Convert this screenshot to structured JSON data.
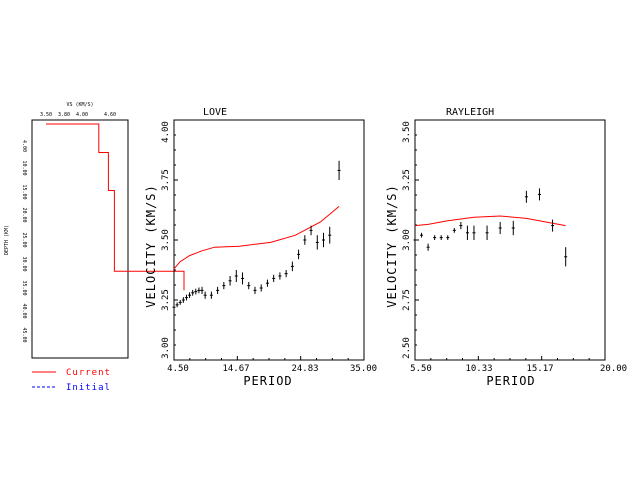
{
  "legend": {
    "current_label": "Current",
    "initial_label": "Initial",
    "current_color": "#ff0000",
    "initial_color": "#0000ff"
  },
  "chart_data": [
    {
      "id": "vs",
      "type": "line",
      "xlabel": "VS (KM/S)",
      "ylabel": "DEPTH (KM)",
      "xticks": [
        "3.50",
        "3.80",
        "4.00",
        "4.60"
      ],
      "yticks": [
        "4.00",
        "10.00",
        "15.00",
        "20.00",
        "25.00",
        "30.00",
        "35.00",
        "40.00",
        "45.00"
      ],
      "series": [
        {
          "name": "Current",
          "color": "#ff0000",
          "points": [
            [
              3.25,
              0
            ],
            [
              3.69,
              0
            ],
            [
              3.69,
              6
            ],
            [
              3.77,
              6
            ],
            [
              3.77,
              14
            ],
            [
              3.82,
              14
            ],
            [
              3.82,
              31
            ],
            [
              4.4,
              31
            ],
            [
              4.4,
              35
            ]
          ]
        }
      ]
    },
    {
      "id": "love",
      "type": "line",
      "title": "LOVE",
      "xlabel": "PERIOD",
      "ylabel": "VELOCITY (KM/S)",
      "xlim": [
        4.5,
        35.0
      ],
      "ylim": [
        3.0,
        4.0
      ],
      "xticks": [
        "4.50",
        "14.67",
        "24.83",
        "35.00"
      ],
      "yticks": [
        "3.00",
        "3.25",
        "3.50",
        "3.75",
        "4.00"
      ],
      "series": [
        {
          "name": "Current",
          "color": "#ff0000",
          "points": [
            [
              4.5,
              3.38
            ],
            [
              5.5,
              3.41
            ],
            [
              7,
              3.435
            ],
            [
              9,
              3.455
            ],
            [
              11,
              3.47
            ],
            [
              15,
              3.474
            ],
            [
              20,
              3.49
            ],
            [
              24,
              3.52
            ],
            [
              28,
              3.575
            ],
            [
              31,
              3.64
            ]
          ]
        }
      ],
      "observed": [
        [
          4.5,
          3.22,
          0.01
        ],
        [
          5.0,
          3.23,
          0.01
        ],
        [
          5.5,
          3.24,
          0.01
        ],
        [
          6.0,
          3.25,
          0.012
        ],
        [
          6.5,
          3.26,
          0.012
        ],
        [
          7.0,
          3.27,
          0.012
        ],
        [
          7.5,
          3.28,
          0.012
        ],
        [
          8.0,
          3.285,
          0.012
        ],
        [
          8.5,
          3.29,
          0.012
        ],
        [
          9.0,
          3.29,
          0.015
        ],
        [
          9.5,
          3.27,
          0.015
        ],
        [
          10.5,
          3.27,
          0.015
        ],
        [
          11.5,
          3.29,
          0.015
        ],
        [
          12.5,
          3.31,
          0.015
        ],
        [
          13.5,
          3.33,
          0.02
        ],
        [
          14.5,
          3.35,
          0.025
        ],
        [
          15.5,
          3.34,
          0.025
        ],
        [
          16.5,
          3.31,
          0.015
        ],
        [
          17.5,
          3.29,
          0.015
        ],
        [
          18.5,
          3.3,
          0.015
        ],
        [
          19.5,
          3.32,
          0.015
        ],
        [
          20.5,
          3.34,
          0.015
        ],
        [
          21.5,
          3.35,
          0.015
        ],
        [
          22.5,
          3.36,
          0.015
        ],
        [
          23.5,
          3.39,
          0.02
        ],
        [
          24.5,
          3.44,
          0.02
        ],
        [
          25.5,
          3.5,
          0.02
        ],
        [
          26.5,
          3.54,
          0.02
        ],
        [
          27.5,
          3.49,
          0.03
        ],
        [
          28.5,
          3.5,
          0.03
        ],
        [
          29.5,
          3.52,
          0.035
        ],
        [
          31.0,
          3.79,
          0.04
        ]
      ]
    },
    {
      "id": "rayleigh",
      "type": "line",
      "title": "RAYLEIGH",
      "xlabel": "PERIOD",
      "ylabel": "VELOCITY (KM/S)",
      "xlim": [
        5.5,
        20.0
      ],
      "ylim": [
        2.5,
        3.5
      ],
      "xticks": [
        "5.50",
        "10.33",
        "15.17",
        "20.00"
      ],
      "yticks": [
        "2.50",
        "2.75",
        "3.00",
        "3.25",
        "3.50"
      ],
      "series": [
        {
          "name": "Current",
          "color": "#ff0000",
          "points": [
            [
              5.5,
              3.06
            ],
            [
              6.5,
              3.065
            ],
            [
              8,
              3.08
            ],
            [
              10,
              3.095
            ],
            [
              12,
              3.1
            ],
            [
              14,
              3.09
            ],
            [
              16,
              3.07
            ],
            [
              17,
              3.06
            ]
          ]
        }
      ],
      "observed": [
        [
          5.5,
          3.0,
          0.01
        ],
        [
          6.0,
          3.02,
          0.01
        ],
        [
          6.5,
          2.97,
          0.015
        ],
        [
          7.0,
          3.01,
          0.01
        ],
        [
          7.5,
          3.01,
          0.01
        ],
        [
          8.0,
          3.01,
          0.01
        ],
        [
          8.5,
          3.04,
          0.01
        ],
        [
          9.0,
          3.06,
          0.015
        ],
        [
          9.5,
          3.03,
          0.03
        ],
        [
          10.0,
          3.03,
          0.03
        ],
        [
          11.0,
          3.03,
          0.03
        ],
        [
          12.0,
          3.05,
          0.025
        ],
        [
          13.0,
          3.05,
          0.03
        ],
        [
          14.0,
          3.18,
          0.025
        ],
        [
          15.0,
          3.19,
          0.025
        ],
        [
          16.0,
          3.06,
          0.025
        ],
        [
          17.0,
          2.93,
          0.04
        ]
      ]
    }
  ]
}
